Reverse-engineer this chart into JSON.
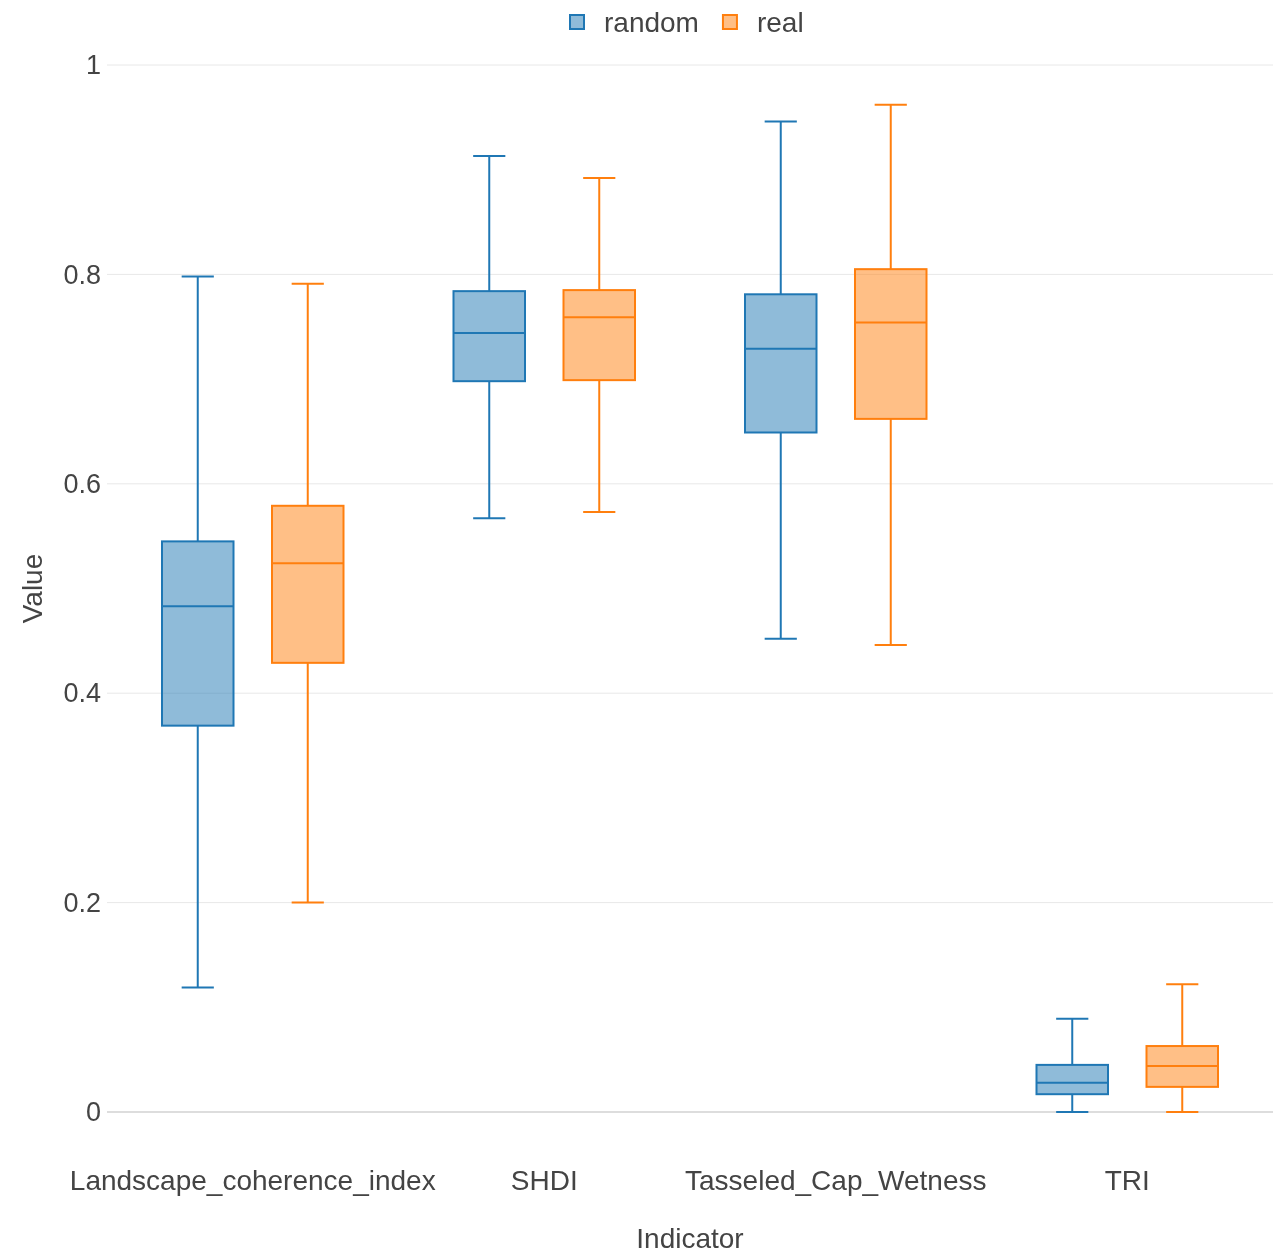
{
  "chart_data": {
    "type": "box",
    "xlabel": "Indicator",
    "ylabel": "Value",
    "categories": [
      "Landscape_coherence_index",
      "SHDI",
      "Tasseled_Cap_Wetness",
      "TRI"
    ],
    "ylim": [
      0,
      1
    ],
    "yticks": [
      0,
      0.2,
      0.4,
      0.6,
      0.8,
      1
    ],
    "grid": "y",
    "legend": "top",
    "series": [
      {
        "name": "random",
        "color": "#1f77b4",
        "boxes": [
          {
            "low": 0.119,
            "q1": 0.369,
            "median": 0.483,
            "q3": 0.545,
            "high": 0.798
          },
          {
            "low": 0.567,
            "q1": 0.698,
            "median": 0.744,
            "q3": 0.784,
            "high": 0.913
          },
          {
            "low": 0.452,
            "q1": 0.649,
            "median": 0.729,
            "q3": 0.781,
            "high": 0.946
          },
          {
            "low": 0,
            "q1": 0.017,
            "median": 0.028,
            "q3": 0.045,
            "high": 0.089
          }
        ]
      },
      {
        "name": "real",
        "color": "#ff7f0e",
        "boxes": [
          {
            "low": 0.2,
            "q1": 0.429,
            "median": 0.524,
            "q3": 0.579,
            "high": 0.791
          },
          {
            "low": 0.573,
            "q1": 0.699,
            "median": 0.759,
            "q3": 0.785,
            "high": 0.892
          },
          {
            "low": 0.446,
            "q1": 0.662,
            "median": 0.754,
            "q3": 0.805,
            "high": 0.962
          },
          {
            "low": 0,
            "q1": 0.024,
            "median": 0.044,
            "q3": 0.063,
            "high": 0.122
          }
        ]
      }
    ]
  }
}
